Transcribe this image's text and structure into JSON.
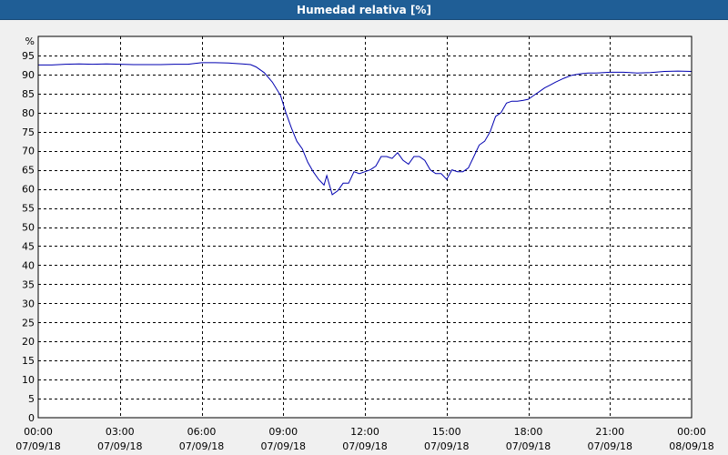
{
  "window": {
    "title": "Humedad relativa [%]"
  },
  "chart_data": {
    "type": "line",
    "title": "Humedad relativa [%]",
    "ylabel": "%",
    "xlabel": "",
    "ylim": [
      0,
      100
    ],
    "y_ticks": [
      0,
      5,
      10,
      15,
      20,
      25,
      30,
      35,
      40,
      45,
      50,
      55,
      60,
      65,
      70,
      75,
      80,
      85,
      90,
      95
    ],
    "xlim_hours": [
      0,
      24
    ],
    "x_ticks": [
      {
        "time": "00:00",
        "date": "07/09/18"
      },
      {
        "time": "03:00",
        "date": "07/09/18"
      },
      {
        "time": "06:00",
        "date": "07/09/18"
      },
      {
        "time": "09:00",
        "date": "07/09/18"
      },
      {
        "time": "12:00",
        "date": "07/09/18"
      },
      {
        "time": "15:00",
        "date": "07/09/18"
      },
      {
        "time": "18:00",
        "date": "07/09/18"
      },
      {
        "time": "21:00",
        "date": "07/09/18"
      },
      {
        "time": "00:00",
        "date": "08/09/18"
      }
    ],
    "grid": true,
    "line_color": "#0000b0",
    "series": [
      {
        "x": [
          0.0,
          0.5,
          1.0,
          1.5,
          2.0,
          2.5,
          3.0,
          3.5,
          4.0,
          4.5,
          5.0,
          5.5,
          6.0,
          6.5,
          7.0,
          7.5,
          7.8,
          8.0,
          8.3,
          8.6,
          8.9,
          9.1,
          9.3,
          9.5,
          9.7,
          9.9,
          10.1,
          10.3,
          10.5,
          10.6,
          10.8,
          11.0,
          11.2,
          11.4,
          11.6,
          11.8,
          12.0,
          12.2,
          12.4,
          12.6,
          12.8,
          13.0,
          13.2,
          13.4,
          13.6,
          13.8,
          14.0,
          14.2,
          14.4,
          14.6,
          14.8,
          15.0,
          15.2,
          15.4,
          15.6,
          15.8,
          16.0,
          16.2,
          16.4,
          16.6,
          16.8,
          17.0,
          17.2,
          17.4,
          17.6,
          17.8,
          18.0,
          18.2,
          18.4,
          18.6,
          18.8,
          19.0,
          19.3,
          19.6,
          19.9,
          20.2,
          20.5,
          21.0,
          21.5,
          22.0,
          22.5,
          23.0,
          23.5,
          24.0
        ],
        "values": [
          92.5,
          92.5,
          92.7,
          92.8,
          92.7,
          92.8,
          92.7,
          92.6,
          92.6,
          92.6,
          92.7,
          92.7,
          93.1,
          93.1,
          93.0,
          92.8,
          92.6,
          92.0,
          90.5,
          88.0,
          84.5,
          80.0,
          76.0,
          72.5,
          70.5,
          67.0,
          64.5,
          62.5,
          61.0,
          63.5,
          58.5,
          59.5,
          61.5,
          61.5,
          64.5,
          64.0,
          64.5,
          65.0,
          66.0,
          68.5,
          68.5,
          68.0,
          69.5,
          67.5,
          66.5,
          68.5,
          68.5,
          67.5,
          65.0,
          64.0,
          64.0,
          62.5,
          65.0,
          64.5,
          64.5,
          65.5,
          68.5,
          71.5,
          72.5,
          75.0,
          79.0,
          80.0,
          82.5,
          83.0,
          83.0,
          83.2,
          83.5,
          84.5,
          85.5,
          86.5,
          87.2,
          88.0,
          89.0,
          89.8,
          90.2,
          90.4,
          90.4,
          90.6,
          90.6,
          90.4,
          90.5,
          90.8,
          90.9,
          90.8
        ]
      }
    ]
  }
}
